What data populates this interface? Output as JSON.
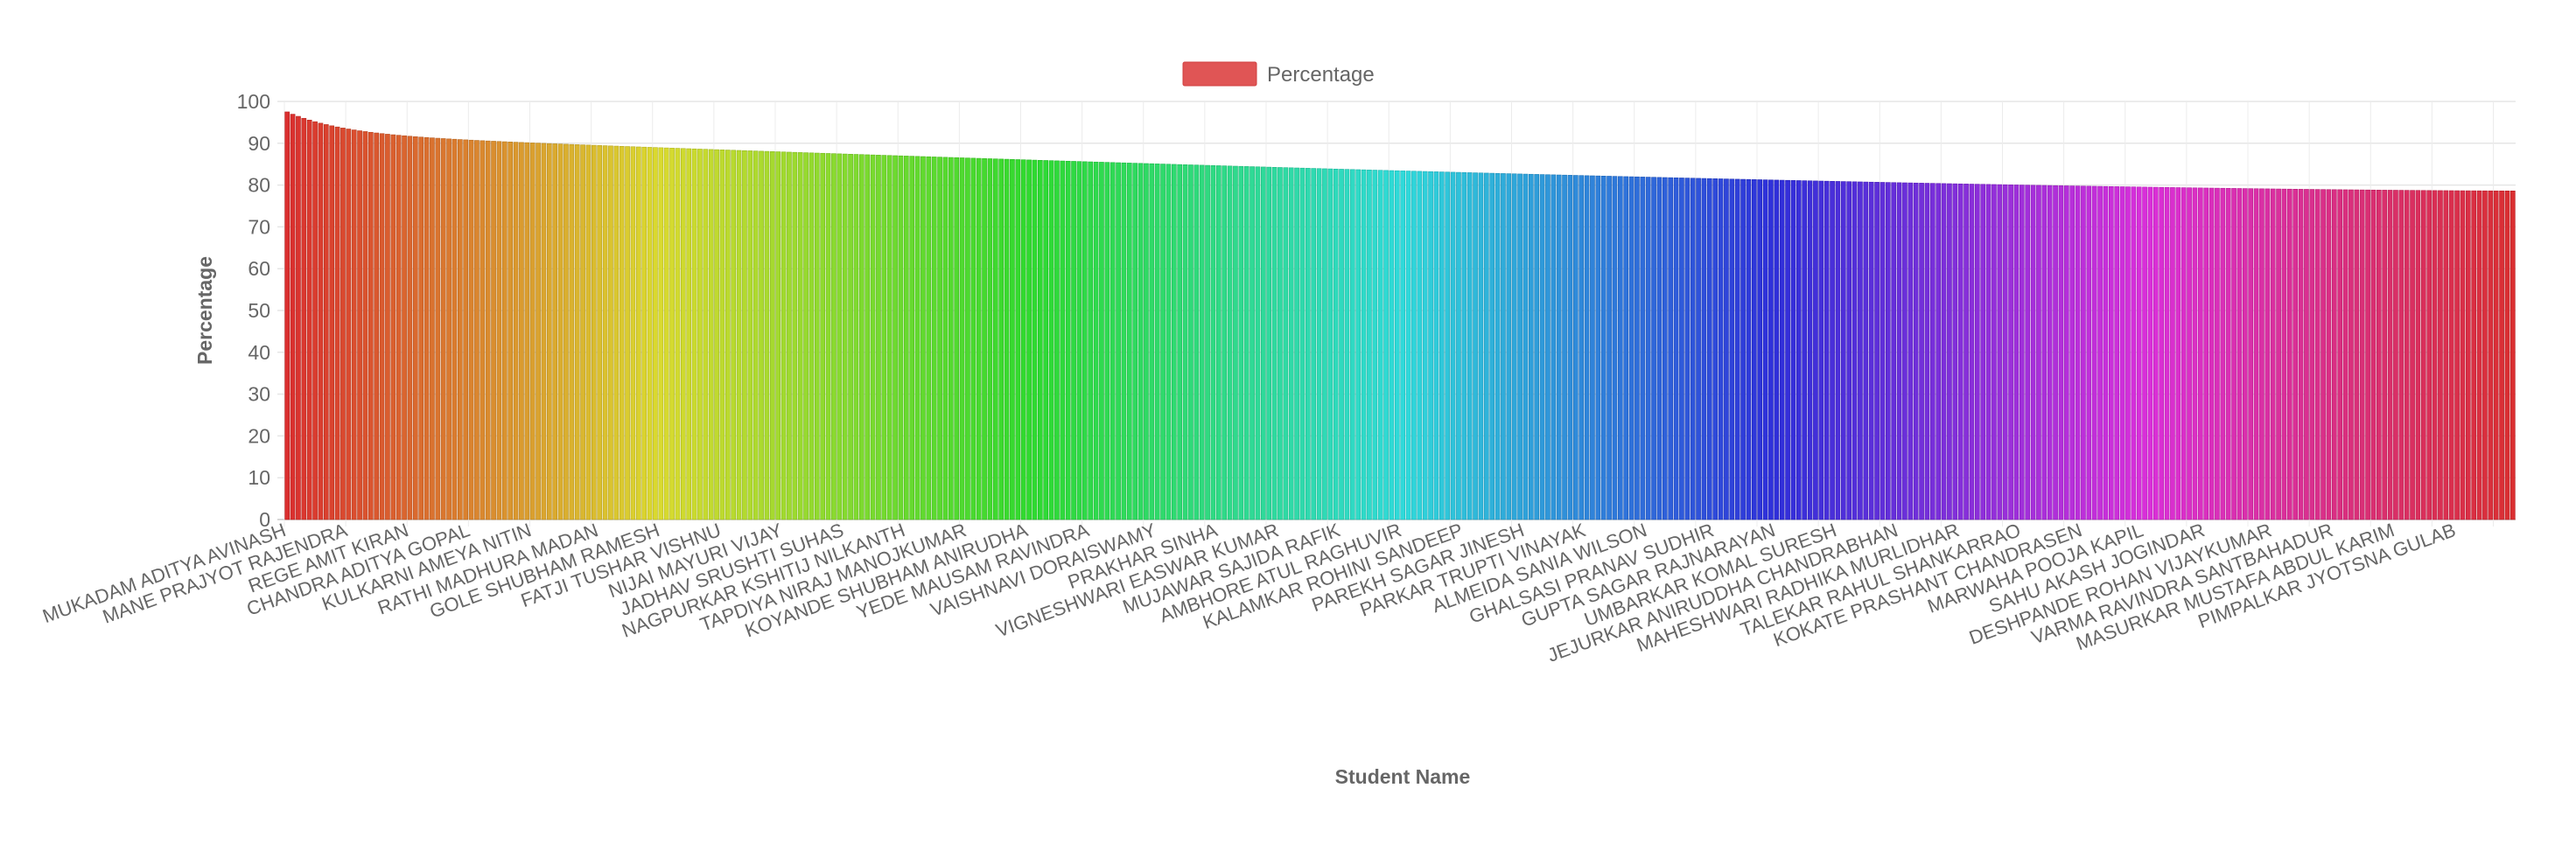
{
  "chart_data": {
    "type": "bar",
    "legend": {
      "label": "Percentage",
      "placement": "top-center",
      "color": "#e05555"
    },
    "xlabel": "Student Name",
    "ylabel": "Percentage",
    "ylim": [
      0,
      100
    ],
    "yticks": [
      0,
      10,
      20,
      30,
      40,
      50,
      60,
      70,
      80,
      90,
      100
    ],
    "grid": true,
    "bar_count": 400,
    "value_profile": {
      "first_bar": 97.5,
      "last_bar": 78.6,
      "shape": "monotonic decreasing, steep at start then flattening",
      "color_gradient": "rainbow: red → orange → yellow → green → cyan → blue → purple → magenta → red"
    },
    "labeled_categories": [
      "MUKADAM ADITYA AVINASH",
      "MANE PRAJYOT RAJENDRA",
      "REGE AMIT KIRAN",
      "CHANDRA ADITYA GOPAL",
      "KULKARNI AMEYA NITIN",
      "RATHI MADHURA MADAN",
      "GOLE SHUBHAM RAMESH",
      "FATJI TUSHAR VISHNU",
      "NIJAI MAYURI VIJAY",
      "JADHAV SRUSHTI SUHAS",
      "NAGPURKAR KSHITIJ NILKANTH",
      "TAPDIYA NIRAJ MANOJKUMAR",
      "KOYANDE SHUBHAM ANIRUDHA",
      "YEDE MAUSAM RAVINDRA",
      "VAISHNAVI DORAISWAMY",
      "PRAKHAR SINHA",
      "VIGNESHWARI EASWAR KUMAR",
      "MUJAWAR SAJIDA RAFIK",
      "AMBHORE ATUL RAGHUVIR",
      "KALAMKAR ROHINI SANDEEP",
      "PAREKH SAGAR JINESH",
      "PARKAR TRUPTI VINAYAK",
      "ALMEIDA SANIA WILSON",
      "GHALSASI PRANAV SUDHIR",
      "GUPTA SAGAR RAJNARAYAN",
      "UMBARKAR KOMAL SURESH",
      "JEJURKAR ANIRUDDHA CHANDRABHAN",
      "MAHESHWARI RADHIKA MURLIDHAR",
      "TALEKAR RAHUL SHANKARRAO",
      "KOKATE PRASHANT CHANDRASEN",
      "MARWAHA POOJA KAPIL",
      "SAHU AKASH JOGINDAR",
      "DESHPANDE ROHAN VIJAYKUMAR",
      "VARMA RAVINDRA SANTBAHADUR",
      "MASURKAR MUSTAFA ABDUL KARIM",
      "PIMPALKAR JYOTSNA GULAB"
    ]
  }
}
